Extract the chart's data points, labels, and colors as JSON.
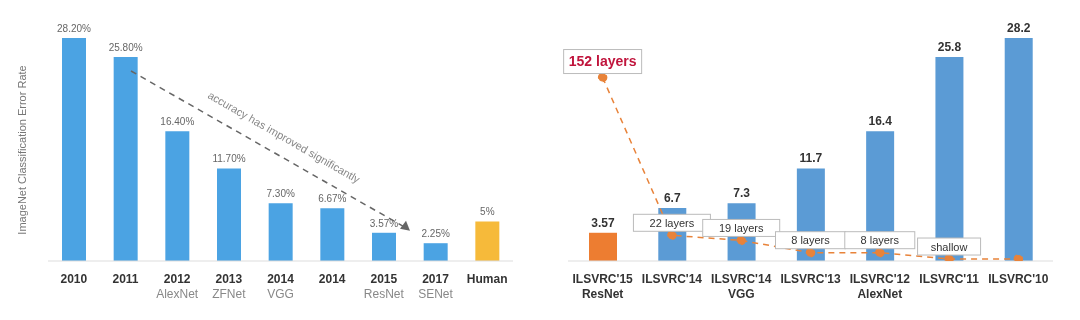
{
  "chart_data": [
    {
      "type": "bar",
      "ylabel": "ImageNet Classification Error Rate",
      "categories": [
        "2010",
        "2011",
        "2012\nAlexNet",
        "2013\nZFNet",
        "2014\nVGG",
        "2014",
        "2015\nResNet",
        "2017\nSENet",
        "Human"
      ],
      "values": [
        28.2,
        25.8,
        16.4,
        11.7,
        7.3,
        6.67,
        3.57,
        2.25,
        5
      ],
      "colors": [
        "#4ba3e3",
        "#4ba3e3",
        "#4ba3e3",
        "#4ba3e3",
        "#4ba3e3",
        "#4ba3e3",
        "#4ba3e3",
        "#4ba3e3",
        "#f6ba3a"
      ],
      "value_labels": [
        "28.20%",
        "25.80%",
        "16.40%",
        "11.70%",
        "7.30%",
        "6.67%",
        "3.57%",
        "2.25%",
        "5%"
      ],
      "annotations": [
        "accuracy has improved significantly"
      ]
    },
    {
      "type": "bar",
      "categories": [
        "ILSVRC'15\nResNet",
        "ILSVRC'14",
        "ILSVRC'14\nVGG",
        "ILSVRC'13",
        "ILSVRC'12\nAlexNet",
        "ILSVRC'11",
        "ILSVRC'10"
      ],
      "series": [
        {
          "colors": [
            "#ed7d31",
            "#5b9bd5",
            "#5b9bd5",
            "#5b9bd5",
            "#5b9bd5",
            "#5b9bd5",
            "#5b9bd5"
          ],
          "values": [
            3.57,
            6.7,
            7.3,
            11.7,
            16.4,
            25.8,
            28.2
          ],
          "value_labels": [
            "3.57",
            "6.7",
            "7.3",
            "11.7",
            "16.4",
            "25.8",
            "28.2"
          ]
        },
        {
          "type": "line",
          "color": "#e8833a",
          "values": [
            23.2,
            3.25,
            2.6,
            1.05,
            1.05,
            0.25,
            0.25
          ],
          "marker": "circle",
          "line_style": "dashed"
        }
      ],
      "annotations": [
        {
          "text": "152 layers",
          "x": "ILSVRC'15\nResNet",
          "y": 23.2
        },
        {
          "text": "22 layers",
          "x": "ILSVRC'14",
          "y": 3.25
        },
        {
          "text": "19 layers",
          "x": "ILSVRC'14\nVGG",
          "y": 2.6
        },
        {
          "text": "8 layers",
          "x": "ILSVRC'13",
          "y": 1.05
        },
        {
          "text": "8 layers",
          "x": "ILSVRC'12\nAlexNet",
          "y": 1.05
        },
        {
          "text": "shallow",
          "x": "ILSVRC'11",
          "y": 0.25
        }
      ]
    }
  ]
}
